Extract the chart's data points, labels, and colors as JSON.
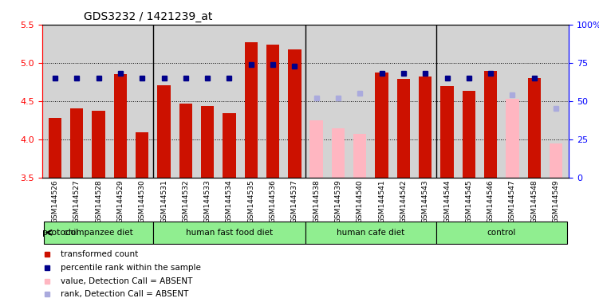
{
  "title": "GDS3232 / 1421239_at",
  "samples": [
    "GSM144526",
    "GSM144527",
    "GSM144528",
    "GSM144529",
    "GSM144530",
    "GSM144531",
    "GSM144532",
    "GSM144533",
    "GSM144534",
    "GSM144535",
    "GSM144536",
    "GSM144537",
    "GSM144538",
    "GSM144539",
    "GSM144540",
    "GSM144541",
    "GSM144542",
    "GSM144543",
    "GSM144544",
    "GSM144545",
    "GSM144546",
    "GSM144547",
    "GSM144548",
    "GSM144549"
  ],
  "bar_values": [
    4.28,
    4.4,
    4.37,
    4.85,
    4.09,
    4.71,
    4.47,
    4.43,
    4.34,
    5.27,
    5.24,
    5.17,
    4.25,
    4.14,
    4.07,
    4.87,
    4.79,
    4.82,
    4.7,
    4.63,
    4.89,
    4.53,
    4.8,
    3.95
  ],
  "rank_values": [
    65,
    65,
    65,
    68,
    65,
    65,
    65,
    65,
    65,
    74,
    74,
    73,
    52,
    52,
    55,
    68,
    68,
    68,
    65,
    65,
    68,
    54,
    65,
    45
  ],
  "absent": [
    false,
    false,
    false,
    false,
    false,
    false,
    false,
    false,
    false,
    false,
    false,
    false,
    true,
    true,
    true,
    false,
    false,
    false,
    false,
    false,
    false,
    true,
    false,
    true
  ],
  "groups": [
    {
      "name": "chimpanzee diet",
      "start": 0,
      "end": 5,
      "color": "#90EE90"
    },
    {
      "name": "human fast food diet",
      "start": 5,
      "end": 12,
      "color": "#90EE90"
    },
    {
      "name": "human cafe diet",
      "start": 12,
      "end": 18,
      "color": "#90EE90"
    },
    {
      "name": "control",
      "start": 18,
      "end": 24,
      "color": "#90EE90"
    }
  ],
  "ylim_left": [
    3.5,
    5.5
  ],
  "ylim_right": [
    0,
    100
  ],
  "bar_color_present": "#CC1100",
  "bar_color_absent": "#FFB6C1",
  "rank_color_present": "#00008B",
  "rank_color_absent": "#AAAADD",
  "bg_color": "#D3D3D3",
  "group_dividers": [
    5,
    12,
    18
  ],
  "grid_values_left": [
    3.5,
    4.0,
    4.5,
    5.0,
    5.5
  ],
  "grid_values_right": [
    0,
    25,
    50,
    75,
    100
  ]
}
